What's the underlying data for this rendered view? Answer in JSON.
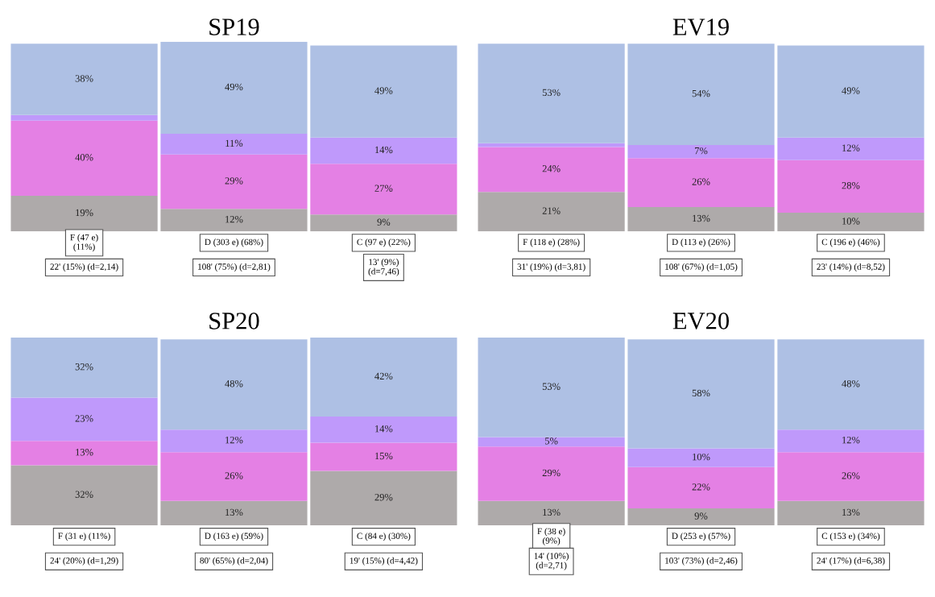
{
  "chart_data": [
    {
      "type": "bar",
      "title": "SP19",
      "stacked": true,
      "tick_labels": false,
      "ylim": [
        0,
        101
      ],
      "categories": [
        "F (47 e)\n(11%)",
        "D (303 e) (68%)",
        "C (97 e) (22%)"
      ],
      "series": [
        {
          "color": "#aeaaaa",
          "values": [
            19,
            12,
            9
          ],
          "value_labels": [
            "19%",
            "12%",
            "9%"
          ]
        },
        {
          "color": "#e480e4",
          "values": [
            40,
            29,
            27
          ],
          "value_labels": [
            "40%",
            "29%",
            "27%"
          ]
        },
        {
          "color": "#bf99fb",
          "values": [
            3,
            11,
            14
          ],
          "value_labels": [
            null,
            "11%",
            "14%"
          ]
        },
        {
          "color": "#aec0e4",
          "values": [
            38,
            49,
            49
          ],
          "value_labels": [
            "38%",
            "49%",
            "49%"
          ]
        }
      ],
      "annotations": [
        "22' (15%) (d=2,14)",
        "108' (75%) (d=2,81)",
        "13' (9%)\n(d=7,46)"
      ]
    },
    {
      "type": "bar",
      "title": "EV19",
      "stacked": true,
      "tick_labels": false,
      "ylim": [
        0,
        101
      ],
      "categories": [
        "F (118 e) (28%)",
        "D (113 e) (26%)",
        "C (196 e) (46%)"
      ],
      "series": [
        {
          "color": "#aeaaaa",
          "values": [
            21,
            13,
            10
          ],
          "value_labels": [
            "21%",
            "13%",
            "10%"
          ]
        },
        {
          "color": "#e480e4",
          "values": [
            24,
            26,
            28
          ],
          "value_labels": [
            "24%",
            "26%",
            "28%"
          ]
        },
        {
          "color": "#bf99fb",
          "values": [
            2,
            7,
            12
          ],
          "value_labels": [
            null,
            "7%",
            "12%"
          ]
        },
        {
          "color": "#aec0e4",
          "values": [
            53,
            54,
            49
          ],
          "value_labels": [
            "53%",
            "54%",
            "49%"
          ]
        }
      ],
      "annotations": [
        "31' (19%) (d=3,81)",
        "108' (67%) (d=1,05)",
        "23' (14%) (d=8,52)"
      ]
    },
    {
      "type": "bar",
      "title": "SP20",
      "stacked": true,
      "tick_labels": false,
      "ylim": [
        0,
        101
      ],
      "categories": [
        "F (31 e) (11%)",
        "D (163 e) (59%)",
        "C (84 e) (30%)"
      ],
      "series": [
        {
          "color": "#aeaaaa",
          "values": [
            32,
            13,
            29
          ],
          "value_labels": [
            "32%",
            "13%",
            "29%"
          ]
        },
        {
          "color": "#e480e4",
          "values": [
            13,
            26,
            15
          ],
          "value_labels": [
            "13%",
            "26%",
            "15%"
          ]
        },
        {
          "color": "#bf99fb",
          "values": [
            23,
            12,
            14
          ],
          "value_labels": [
            "23%",
            "12%",
            "14%"
          ]
        },
        {
          "color": "#aec0e4",
          "values": [
            32,
            48,
            42
          ],
          "value_labels": [
            "32%",
            "48%",
            "42%"
          ]
        }
      ],
      "annotations": [
        "24' (20%) (d=1,29)",
        "80' (65%) (d=2,04)",
        "19' (15%) (d=4,42)"
      ]
    },
    {
      "type": "bar",
      "title": "EV20",
      "stacked": true,
      "tick_labels": false,
      "ylim": [
        0,
        101
      ],
      "categories": [
        "F (38 e)\n(9%)",
        "D (253 e) (57%)",
        "C (153 e) (34%)"
      ],
      "series": [
        {
          "color": "#aeaaaa",
          "values": [
            13,
            9,
            13
          ],
          "value_labels": [
            "13%",
            "9%",
            "13%"
          ]
        },
        {
          "color": "#e480e4",
          "values": [
            29,
            22,
            26
          ],
          "value_labels": [
            "29%",
            "22%",
            "26%"
          ]
        },
        {
          "color": "#bf99fb",
          "values": [
            5,
            10,
            12
          ],
          "value_labels": [
            "5%",
            "10%",
            "12%"
          ]
        },
        {
          "color": "#aec0e4",
          "values": [
            53,
            58,
            48
          ],
          "value_labels": [
            "53%",
            "58%",
            "48%"
          ]
        }
      ],
      "annotations": [
        "14' (10%)\n(d=2,71)",
        "103' (73%) (d=2,46)",
        "24' (17%) (d=6,38)"
      ]
    }
  ]
}
